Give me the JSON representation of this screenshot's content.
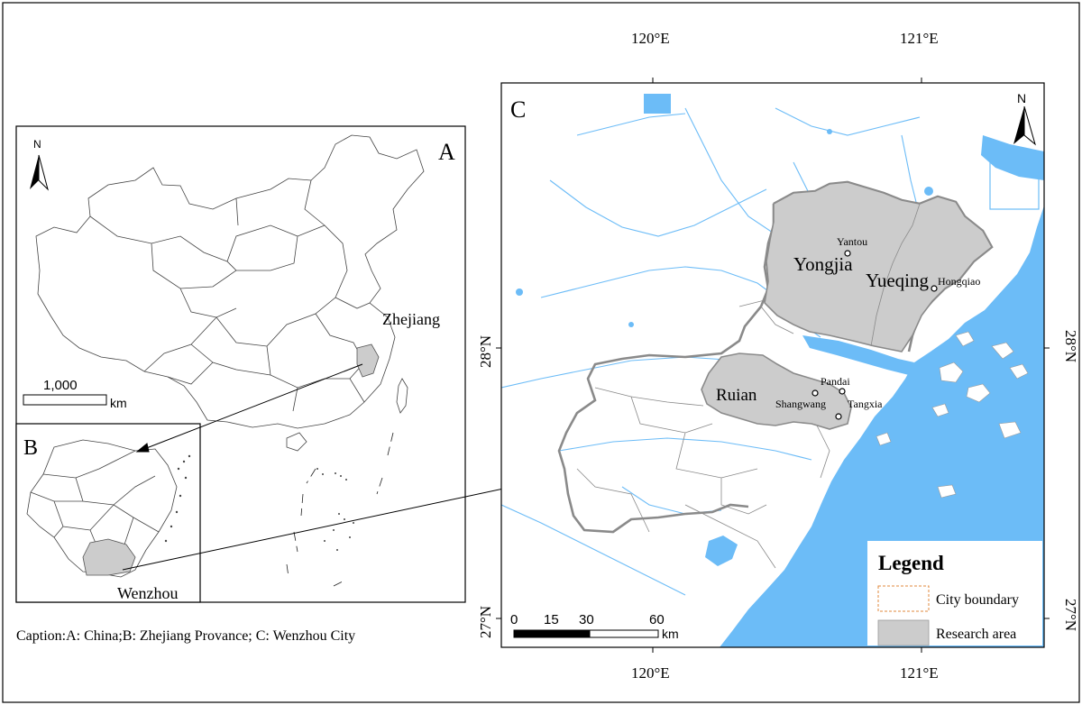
{
  "panel_a": {
    "letter": "A",
    "north_label": "N",
    "province_label": "Zhejiang",
    "scale_value": "1,000",
    "scale_unit": "km"
  },
  "panel_b": {
    "letter": "B",
    "city_label": "Wenzhou"
  },
  "panel_c": {
    "letter": "C",
    "north_label": "N",
    "lon_labels": [
      "120°E",
      "121°E"
    ],
    "lat_labels": [
      "28°N",
      "27°N"
    ],
    "districts": [
      "Yongjia",
      "Yueqing",
      "Ruian"
    ],
    "towns": [
      "Yantou",
      "Hongqiao",
      "Pandai",
      "Shangwang",
      "Tangxia"
    ],
    "scale_ticks": [
      "0",
      "15",
      "30",
      "60"
    ],
    "scale_unit": "km",
    "legend": {
      "title": "Legend",
      "items": [
        {
          "label": "City boundary",
          "color": "#e08a3c"
        },
        {
          "label": "Research area",
          "color": "#cccccc"
        }
      ]
    }
  },
  "caption": "Caption:A: China;B: Zhejiang Provance; C: Wenzhou City",
  "colors": {
    "water": "#6cbcf7",
    "research_area": "#cccccc",
    "city_boundary": "#e08a3c",
    "research_outline": "#8a8a8a"
  }
}
